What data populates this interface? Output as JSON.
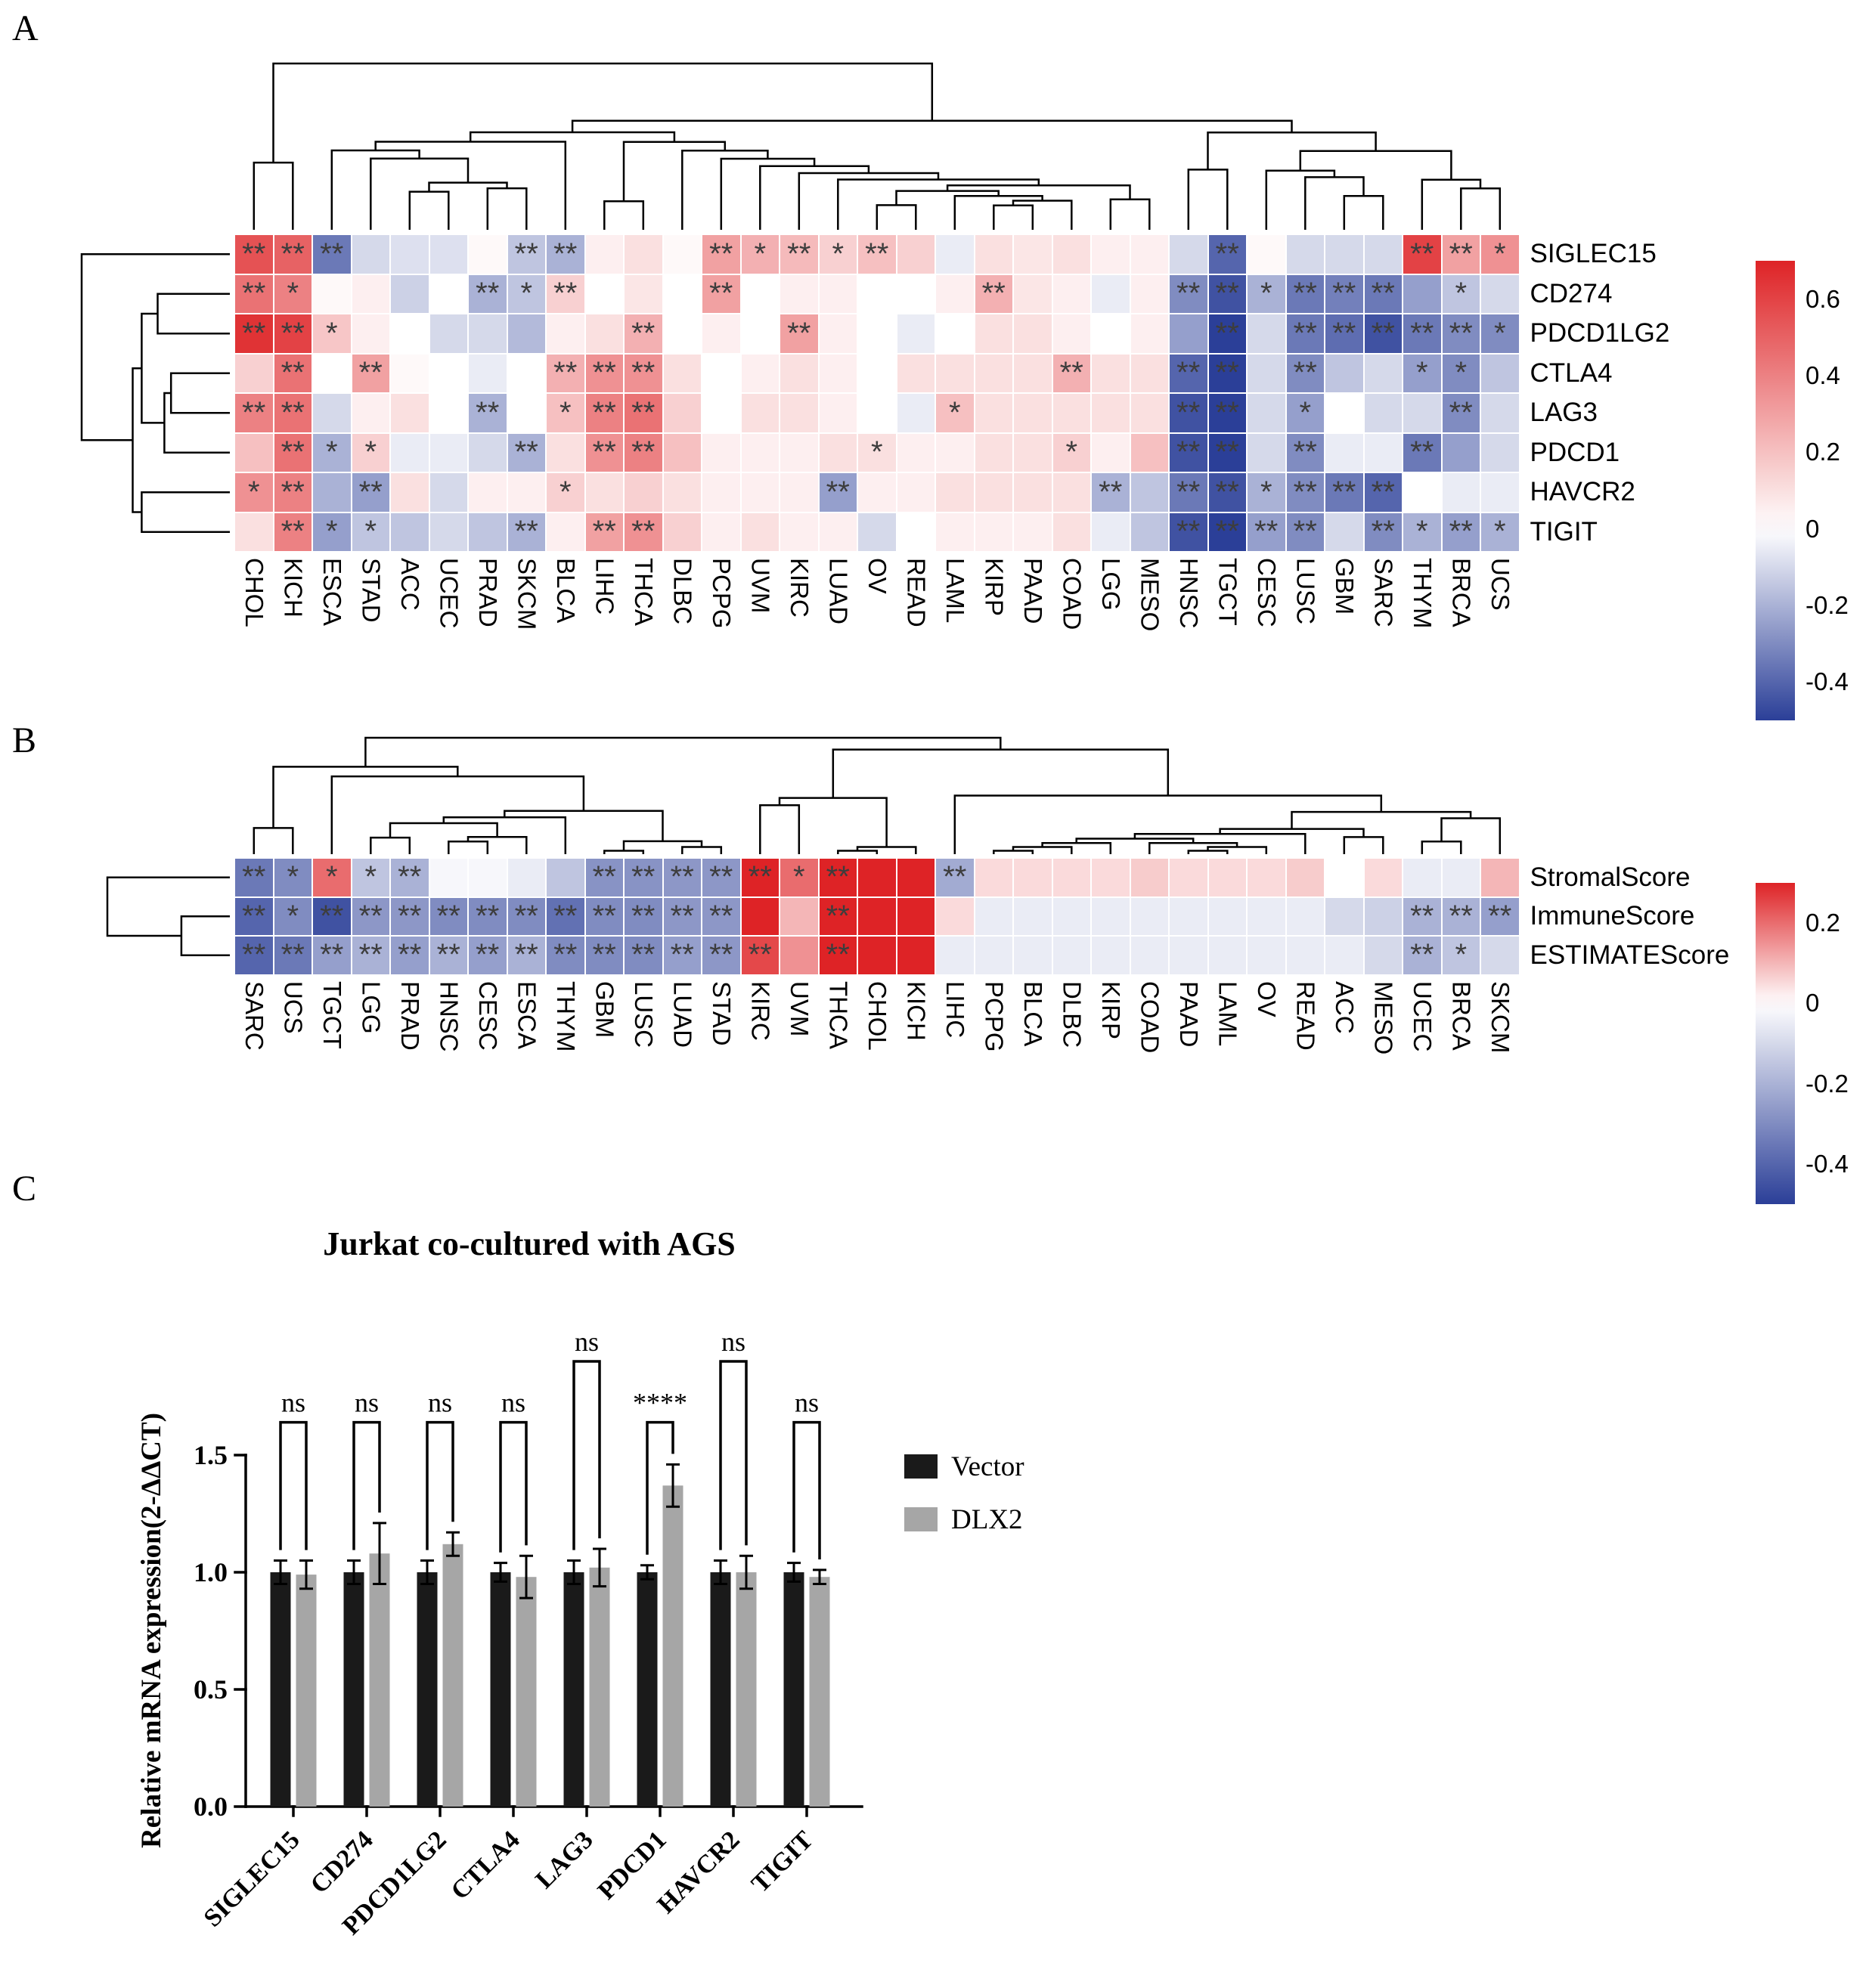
{
  "panels": {
    "a": {
      "label": "A"
    },
    "b": {
      "label": "B"
    },
    "c": {
      "label": "C"
    }
  },
  "chart_data": [
    {
      "type": "heatmap",
      "panel": "A",
      "rows": [
        "SIGLEC15",
        "CD274",
        "PDCD1LG2",
        "CTLA4",
        "LAG3",
        "PDCD1",
        "HAVCR2",
        "TIGIT"
      ],
      "columns": [
        "CHOL",
        "KICH",
        "ESCA",
        "STAD",
        "ACC",
        "UCEC",
        "PRAD",
        "SKCM",
        "BLCA",
        "LIHC",
        "THCA",
        "DLBC",
        "PCPG",
        "UVM",
        "KIRC",
        "LUAD",
        "OV",
        "READ",
        "LAML",
        "KIRP",
        "PAAD",
        "COAD",
        "LGG",
        "MESO",
        "HNSC",
        "TGCT",
        "CESC",
        "LUSC",
        "GBM",
        "SARC",
        "THYM",
        "BRCA",
        "UCS"
      ],
      "values": [
        [
          0.55,
          0.5,
          -0.35,
          -0.1,
          -0.08,
          -0.08,
          0.02,
          -0.15,
          -0.2,
          0.05,
          0.1,
          0.02,
          0.3,
          0.25,
          0.22,
          0.15,
          0.2,
          0.15,
          -0.05,
          0.1,
          0.08,
          0.1,
          0.05,
          0.05,
          -0.1,
          -0.4,
          0.02,
          -0.1,
          -0.1,
          -0.1,
          0.6,
          0.3,
          0.35
        ],
        [
          0.45,
          0.4,
          0.02,
          0.05,
          -0.12,
          0,
          -0.2,
          -0.15,
          0.15,
          0,
          0.08,
          0,
          0.3,
          0,
          0.05,
          0.05,
          0,
          0,
          0.05,
          0.25,
          0.08,
          0.05,
          -0.05,
          0.05,
          -0.3,
          -0.45,
          -0.2,
          -0.35,
          -0.33,
          -0.35,
          -0.25,
          -0.15,
          -0.1
        ],
        [
          0.65,
          0.6,
          0.18,
          0.05,
          0,
          -0.1,
          -0.1,
          -0.18,
          0.05,
          0.1,
          0.25,
          0,
          0.05,
          0,
          0.3,
          0.05,
          0,
          -0.05,
          0,
          0.1,
          0.1,
          0.05,
          0,
          0.05,
          -0.25,
          -0.5,
          -0.1,
          -0.35,
          -0.38,
          -0.45,
          -0.35,
          -0.3,
          -0.3
        ],
        [
          0.15,
          0.45,
          0,
          0.3,
          0.02,
          0,
          -0.05,
          0,
          0.25,
          0.35,
          0.35,
          0.1,
          0,
          0.05,
          0.1,
          0.05,
          0,
          0.1,
          0.1,
          0.1,
          0.1,
          0.25,
          0.1,
          0.1,
          -0.4,
          -0.5,
          -0.1,
          -0.3,
          -0.15,
          -0.1,
          -0.25,
          -0.3,
          -0.15
        ],
        [
          0.4,
          0.45,
          -0.1,
          0.05,
          0.1,
          0,
          -0.2,
          0,
          0.2,
          0.4,
          0.45,
          0.15,
          0,
          0.1,
          0.1,
          0.05,
          0,
          -0.05,
          0.2,
          0.1,
          0.1,
          0.1,
          0.1,
          0.1,
          -0.45,
          -0.5,
          -0.1,
          -0.25,
          0,
          -0.1,
          -0.1,
          -0.3,
          -0.1
        ],
        [
          0.2,
          0.45,
          -0.2,
          0.15,
          -0.05,
          -0.05,
          -0.1,
          -0.2,
          0.1,
          0.35,
          0.4,
          0.2,
          0.05,
          0.05,
          0.05,
          0.1,
          0.1,
          0.05,
          0.05,
          0.1,
          0.1,
          0.15,
          0.05,
          0.2,
          -0.45,
          -0.5,
          -0.1,
          -0.3,
          -0.05,
          -0.05,
          -0.35,
          -0.25,
          -0.1
        ],
        [
          0.35,
          0.4,
          -0.2,
          -0.25,
          0.1,
          -0.1,
          0.05,
          0.05,
          0.15,
          0.1,
          0.15,
          0.1,
          0.05,
          0.05,
          0.05,
          -0.25,
          0.05,
          0.05,
          0.1,
          0.1,
          0.1,
          0.1,
          -0.2,
          -0.15,
          -0.35,
          -0.45,
          -0.2,
          -0.3,
          -0.35,
          -0.4,
          0,
          -0.05,
          -0.05
        ],
        [
          0.1,
          0.4,
          -0.25,
          -0.15,
          -0.15,
          -0.1,
          -0.15,
          -0.2,
          0.05,
          0.3,
          0.35,
          0.15,
          0.05,
          0.1,
          0.05,
          0.05,
          -0.1,
          0,
          0.05,
          0.05,
          0.05,
          0.1,
          -0.05,
          -0.15,
          -0.45,
          -0.5,
          -0.25,
          -0.3,
          -0.1,
          -0.3,
          -0.2,
          -0.25,
          -0.2
        ]
      ],
      "significance": [
        [
          "**",
          "**",
          "**",
          "",
          "",
          "",
          "",
          "**",
          "**",
          "",
          "",
          "",
          "**",
          "*",
          "**",
          "*",
          "**",
          "",
          "",
          "",
          "",
          "",
          "",
          "",
          "",
          "**",
          "",
          "",
          "",
          "",
          "**",
          "**",
          "*"
        ],
        [
          "**",
          "*",
          "",
          "",
          "",
          "",
          "**",
          "*",
          "**",
          "",
          "",
          "",
          "**",
          "",
          "",
          "",
          "",
          "",
          "",
          "**",
          "",
          "",
          "",
          "",
          "**",
          "**",
          "*",
          "**",
          "**",
          "**",
          "",
          "*",
          ""
        ],
        [
          "**",
          "**",
          "*",
          "",
          "",
          "",
          "",
          "",
          "",
          "",
          "**",
          "",
          "",
          "",
          "**",
          "",
          "",
          "",
          "",
          "",
          "",
          "",
          "",
          "",
          "",
          "**",
          "",
          "**",
          "**",
          "**",
          "**",
          "**",
          "*"
        ],
        [
          "",
          "**",
          "",
          "**",
          "",
          "",
          "",
          "",
          "**",
          "**",
          "**",
          "",
          "",
          "",
          "",
          "",
          "",
          "",
          "",
          "",
          "",
          "**",
          "",
          "",
          "**",
          "**",
          "",
          "**",
          "",
          "",
          "*",
          "*",
          ""
        ],
        [
          "**",
          "**",
          "",
          "",
          "",
          "",
          "**",
          "",
          "*",
          "**",
          "**",
          "",
          "",
          "",
          "",
          "",
          "",
          "",
          "*",
          "",
          "",
          "",
          "",
          "",
          "**",
          "**",
          "",
          "*",
          "",
          "",
          "",
          "**",
          ""
        ],
        [
          "",
          "**",
          "*",
          "*",
          "",
          "",
          "",
          "**",
          "",
          "**",
          "**",
          "",
          "",
          "",
          "",
          "",
          "*",
          "",
          "",
          "",
          "",
          "*",
          "",
          "",
          "**",
          "**",
          "",
          "**",
          "",
          "",
          "**",
          "",
          ""
        ],
        [
          "*",
          "**",
          "",
          "**",
          "",
          "",
          "",
          "",
          "*",
          "",
          "",
          "",
          "",
          "",
          "",
          "**",
          "",
          "",
          "",
          "",
          "",
          "",
          "**",
          "",
          "**",
          "**",
          "*",
          "**",
          "**",
          "**",
          "",
          "",
          ""
        ],
        [
          "",
          "**",
          "*",
          "*",
          "",
          "",
          "",
          "**",
          "",
          "**",
          "**",
          "",
          "",
          "",
          "",
          "",
          "",
          "",
          "",
          "",
          "",
          "",
          "",
          "",
          "**",
          "**",
          "**",
          "**",
          "",
          "**",
          "*",
          "**",
          "*"
        ]
      ],
      "vmin": -0.5,
      "vmax": 0.7,
      "colorbar_ticks": [
        "0.6",
        "0.4",
        "0.2",
        "0",
        "-0.2",
        "-0.4"
      ],
      "colors": {
        "positive": "#de2326",
        "negative": "#2b3f98",
        "zero": "#ffffff"
      }
    },
    {
      "type": "heatmap",
      "panel": "B",
      "rows": [
        "StromalScore",
        "ImmuneScore",
        "ESTIMATEScore"
      ],
      "columns": [
        "SARC",
        "UCS",
        "TGCT",
        "LGG",
        "PRAD",
        "HNSC",
        "CESC",
        "ESCA",
        "THYM",
        "GBM",
        "LUSC",
        "LUAD",
        "STAD",
        "KIRC",
        "UVM",
        "THCA",
        "CHOL",
        "KICH",
        "LIHC",
        "PCPG",
        "BLCA",
        "DLBC",
        "KIRP",
        "COAD",
        "PAAD",
        "LAML",
        "OV",
        "READ",
        "ACC",
        "MESO",
        "UCEC",
        "BRCA",
        "SKCM"
      ],
      "values": [
        [
          -0.35,
          -0.3,
          0.2,
          -0.15,
          -0.2,
          -0.02,
          -0.02,
          -0.05,
          -0.15,
          -0.28,
          -0.28,
          -0.27,
          -0.27,
          0.3,
          0.2,
          0.3,
          0.3,
          0.3,
          -0.22,
          0.05,
          0.05,
          0.05,
          0.05,
          0.07,
          0.05,
          0.05,
          0.05,
          0.07,
          0,
          0.05,
          -0.05,
          -0.05,
          0.1
        ],
        [
          -0.4,
          -0.3,
          -0.45,
          -0.27,
          -0.27,
          -0.3,
          -0.3,
          -0.3,
          -0.37,
          -0.3,
          -0.3,
          -0.27,
          -0.27,
          0.3,
          0.1,
          0.3,
          0.3,
          0.3,
          0.05,
          -0.05,
          -0.05,
          -0.05,
          -0.05,
          -0.05,
          -0.05,
          -0.05,
          -0.05,
          -0.05,
          -0.1,
          -0.12,
          -0.2,
          -0.2,
          -0.25
        ],
        [
          -0.4,
          -0.35,
          -0.25,
          -0.2,
          -0.25,
          -0.2,
          -0.25,
          -0.2,
          -0.3,
          -0.3,
          -0.3,
          -0.25,
          -0.27,
          0.25,
          0.15,
          0.3,
          0.3,
          0.3,
          -0.05,
          -0.05,
          -0.05,
          -0.05,
          -0.05,
          -0.05,
          -0.05,
          -0.05,
          -0.05,
          -0.05,
          -0.05,
          -0.1,
          -0.2,
          -0.15,
          -0.1
        ]
      ],
      "significance": [
        [
          "**",
          "*",
          "*",
          "*",
          "**",
          "",
          "",
          "",
          "",
          "**",
          "**",
          "**",
          "**",
          "**",
          "*",
          "**",
          "",
          "",
          "**",
          "",
          "",
          "",
          "",
          "",
          "",
          "",
          "",
          "",
          "",
          "",
          "",
          "",
          ""
        ],
        [
          "**",
          "*",
          "**",
          "**",
          "**",
          "**",
          "**",
          "**",
          "**",
          "**",
          "**",
          "**",
          "**",
          "",
          "",
          "**",
          "",
          "",
          "",
          "",
          "",
          "",
          "",
          "",
          "",
          "",
          "",
          "",
          "",
          "",
          "**",
          "**",
          "**"
        ],
        [
          "**",
          "**",
          "**",
          "**",
          "**",
          "**",
          "**",
          "**",
          "**",
          "**",
          "**",
          "**",
          "**",
          "**",
          "",
          "**",
          "",
          "",
          "",
          "",
          "",
          "",
          "",
          "",
          "",
          "",
          "",
          "",
          "",
          "",
          "**",
          "*",
          ""
        ]
      ],
      "vmin": -0.5,
      "vmax": 0.3,
      "colorbar_ticks": [
        "0.2",
        "0",
        "-0.2",
        "-0.4"
      ],
      "colors": {
        "positive": "#de2326",
        "negative": "#2b3f98",
        "zero": "#ffffff"
      }
    },
    {
      "type": "bar",
      "panel": "C",
      "title": "Jurkat co-cultured with AGS",
      "ylabel": "Relative mRNA expression(2-ΔΔCT)",
      "categories": [
        "SIGLEC15",
        "CD274",
        "PDCD1LG2",
        "CTLA4",
        "LAG3",
        "PDCD1",
        "HAVCR2",
        "TIGIT"
      ],
      "series": [
        {
          "name": "Vector",
          "color": "#1a1a1a",
          "values": [
            1.0,
            1.0,
            1.0,
            1.0,
            1.0,
            1.0,
            1.0,
            1.0
          ],
          "errors": [
            0.05,
            0.05,
            0.05,
            0.04,
            0.05,
            0.03,
            0.05,
            0.04
          ]
        },
        {
          "name": "DLX2",
          "color": "#a6a6a6",
          "values": [
            0.99,
            1.08,
            1.12,
            0.98,
            1.02,
            1.37,
            1.0,
            0.98
          ],
          "errors": [
            0.06,
            0.13,
            0.05,
            0.09,
            0.08,
            0.09,
            0.07,
            0.03
          ]
        }
      ],
      "significance": [
        "ns",
        "ns",
        "ns",
        "ns",
        "ns",
        "****",
        "ns",
        "ns"
      ],
      "bracket_tops": [
        1.64,
        1.64,
        1.64,
        1.64,
        1.9,
        1.64,
        1.9,
        1.64
      ],
      "yticks": [
        "0.0",
        "0.5",
        "1.0",
        "1.5"
      ],
      "ylim": [
        0,
        1.5
      ],
      "legend_position": "right"
    }
  ]
}
